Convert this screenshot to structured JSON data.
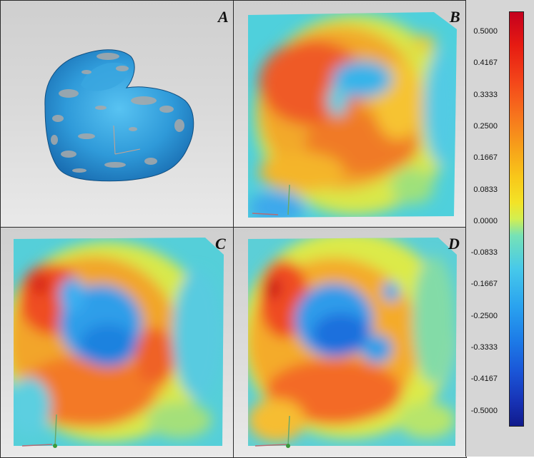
{
  "panels": {
    "a": {
      "label": "A"
    },
    "b": {
      "label": "B"
    },
    "c": {
      "label": "C"
    },
    "d": {
      "label": "D"
    }
  },
  "colorbar": {
    "ticks": [
      "0.5000",
      "0.4167",
      "0.3333",
      "0.2500",
      "0.1667",
      "0.0833",
      "0.0000",
      "-0.0833",
      "-0.1667",
      "-0.2500",
      "-0.3333",
      "-0.4167",
      "-0.5000"
    ]
  }
}
